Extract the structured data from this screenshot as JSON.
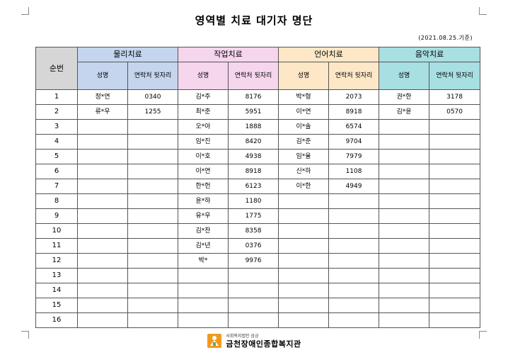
{
  "document": {
    "title": "영역별 치료 대기자 명단",
    "date_note": "(2021.08.25.기준)"
  },
  "table": {
    "seq_header": "순번",
    "categories": [
      "물리치료",
      "작업치료",
      "언어치료",
      "음악치료"
    ],
    "sub_name": "성명",
    "sub_contact": "연락처 뒷자리",
    "rows": [
      {
        "no": "1",
        "pt_name": "정*연",
        "pt_phone": "0340",
        "ot_name": "김*주",
        "ot_phone": "8176",
        "st_name": "박*형",
        "st_phone": "2073",
        "mt_name": "권*한",
        "mt_phone": "3178"
      },
      {
        "no": "2",
        "pt_name": "류*우",
        "pt_phone": "1255",
        "ot_name": "최*준",
        "ot_phone": "5951",
        "st_name": "이*연",
        "st_phone": "8918",
        "mt_name": "김*윤",
        "mt_phone": "0570"
      },
      {
        "no": "3",
        "pt_name": "",
        "pt_phone": "",
        "ot_name": "오*아",
        "ot_phone": "1888",
        "st_name": "이*솔",
        "st_phone": "6574",
        "mt_name": "",
        "mt_phone": ""
      },
      {
        "no": "4",
        "pt_name": "",
        "pt_phone": "",
        "ot_name": "임*진",
        "ot_phone": "8420",
        "st_name": "김*준",
        "st_phone": "9704",
        "mt_name": "",
        "mt_phone": ""
      },
      {
        "no": "5",
        "pt_name": "",
        "pt_phone": "",
        "ot_name": "이*호",
        "ot_phone": "4938",
        "st_name": "임*율",
        "st_phone": "7979",
        "mt_name": "",
        "mt_phone": ""
      },
      {
        "no": "6",
        "pt_name": "",
        "pt_phone": "",
        "ot_name": "이*연",
        "ot_phone": "8918",
        "st_name": "신*하",
        "st_phone": "1108",
        "mt_name": "",
        "mt_phone": ""
      },
      {
        "no": "7",
        "pt_name": "",
        "pt_phone": "",
        "ot_name": "한*헌",
        "ot_phone": "6123",
        "st_name": "이*한",
        "st_phone": "4949",
        "mt_name": "",
        "mt_phone": ""
      },
      {
        "no": "8",
        "pt_name": "",
        "pt_phone": "",
        "ot_name": "윤*하",
        "ot_phone": "1180",
        "st_name": "",
        "st_phone": "",
        "mt_name": "",
        "mt_phone": ""
      },
      {
        "no": "9",
        "pt_name": "",
        "pt_phone": "",
        "ot_name": "유*우",
        "ot_phone": "1775",
        "st_name": "",
        "st_phone": "",
        "mt_name": "",
        "mt_phone": ""
      },
      {
        "no": "10",
        "pt_name": "",
        "pt_phone": "",
        "ot_name": "김*찬",
        "ot_phone": "8358",
        "st_name": "",
        "st_phone": "",
        "mt_name": "",
        "mt_phone": ""
      },
      {
        "no": "11",
        "pt_name": "",
        "pt_phone": "",
        "ot_name": "김*년",
        "ot_phone": "0376",
        "st_name": "",
        "st_phone": "",
        "mt_name": "",
        "mt_phone": ""
      },
      {
        "no": "12",
        "pt_name": "",
        "pt_phone": "",
        "ot_name": "박*",
        "ot_phone": "9976",
        "st_name": "",
        "st_phone": "",
        "mt_name": "",
        "mt_phone": ""
      },
      {
        "no": "13",
        "pt_name": "",
        "pt_phone": "",
        "ot_name": "",
        "ot_phone": "",
        "st_name": "",
        "st_phone": "",
        "mt_name": "",
        "mt_phone": ""
      },
      {
        "no": "14",
        "pt_name": "",
        "pt_phone": "",
        "ot_name": "",
        "ot_phone": "",
        "st_name": "",
        "st_phone": "",
        "mt_name": "",
        "mt_phone": ""
      },
      {
        "no": "15",
        "pt_name": "",
        "pt_phone": "",
        "ot_name": "",
        "ot_phone": "",
        "st_name": "",
        "st_phone": "",
        "mt_name": "",
        "mt_phone": ""
      },
      {
        "no": "16",
        "pt_name": "",
        "pt_phone": "",
        "ot_name": "",
        "ot_phone": "",
        "st_name": "",
        "st_phone": "",
        "mt_name": "",
        "mt_phone": ""
      }
    ]
  },
  "footer": {
    "org_subtitle": "사회복지법인 삼금",
    "org_name": "금천장애인종합복지관",
    "logo_icon": "welfare-center-logo-icon",
    "colors": {
      "logo_orange": "#f29a1f",
      "logo_green": "#6aa84f"
    }
  },
  "colors": {
    "seq_header": "#d6d6d6",
    "physical_therapy": "#c5d5ee",
    "occupational_therapy": "#f6d6ec",
    "speech_therapy": "#fde7c7",
    "music_therapy": "#a8dfe2"
  }
}
